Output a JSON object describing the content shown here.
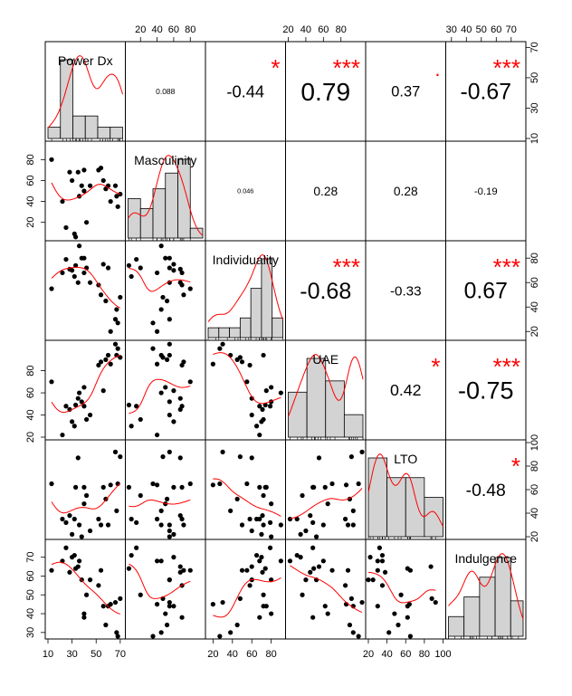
{
  "chart_data": {
    "type": "scatter-matrix",
    "title": "",
    "variables": [
      "Power Dx",
      "Masculinity",
      "Individuality",
      "UAE",
      "LTO",
      "Indulgence"
    ],
    "ticks": {
      "Power Dx": {
        "labels": [
          "10",
          "30",
          "50",
          "70"
        ],
        "values": [
          10,
          30,
          50,
          70
        ],
        "range": [
          10,
          72
        ]
      },
      "Masculinity": {
        "labels": [
          "20",
          "40",
          "60",
          "80"
        ],
        "values": [
          20,
          40,
          60,
          80
        ],
        "range": [
          5,
          95
        ]
      },
      "Individuality": {
        "labels": [
          "20",
          "40",
          "60",
          "80"
        ],
        "values": [
          20,
          40,
          60,
          80
        ],
        "range": [
          15,
          92
        ]
      },
      "UAE": {
        "labels": [
          "20",
          "40",
          "60",
          "80"
        ],
        "values": [
          20,
          40,
          60,
          80
        ],
        "range": [
          20,
          105
        ]
      },
      "LTO": {
        "labels": [
          "20",
          "40",
          "60",
          "80",
          "100"
        ],
        "values": [
          20,
          40,
          60,
          80,
          100
        ],
        "range": [
          20,
          100
        ]
      },
      "Indulgence": {
        "labels": [
          "30",
          "40",
          "50",
          "60",
          "70"
        ],
        "values": [
          30,
          40,
          50,
          60,
          70
        ],
        "range": [
          28,
          78
        ]
      }
    },
    "correlations": [
      {
        "pair": [
          "Power Dx",
          "Masculinity"
        ],
        "value": "0.088",
        "stars": ""
      },
      {
        "pair": [
          "Power Dx",
          "Individuality"
        ],
        "value": "-0.44",
        "stars": "*"
      },
      {
        "pair": [
          "Power Dx",
          "UAE"
        ],
        "value": "0.79",
        "stars": "***"
      },
      {
        "pair": [
          "Power Dx",
          "LTO"
        ],
        "value": "0.37",
        "stars": "."
      },
      {
        "pair": [
          "Power Dx",
          "Indulgence"
        ],
        "value": "-0.67",
        "stars": "***"
      },
      {
        "pair": [
          "Masculinity",
          "Individuality"
        ],
        "value": "0.046",
        "stars": ""
      },
      {
        "pair": [
          "Masculinity",
          "UAE"
        ],
        "value": "0.28",
        "stars": ""
      },
      {
        "pair": [
          "Masculinity",
          "LTO"
        ],
        "value": "0.28",
        "stars": ""
      },
      {
        "pair": [
          "Masculinity",
          "Indulgence"
        ],
        "value": "-0.19",
        "stars": ""
      },
      {
        "pair": [
          "Individuality",
          "UAE"
        ],
        "value": "-0.68",
        "stars": "***"
      },
      {
        "pair": [
          "Individuality",
          "LTO"
        ],
        "value": "-0.33",
        "stars": ""
      },
      {
        "pair": [
          "Individuality",
          "Indulgence"
        ],
        "value": "0.67",
        "stars": "***"
      },
      {
        "pair": [
          "UAE",
          "LTO"
        ],
        "value": "0.42",
        "stars": "*"
      },
      {
        "pair": [
          "UAE",
          "Indulgence"
        ],
        "value": "-0.75",
        "stars": "***"
      },
      {
        "pair": [
          "LTO",
          "Indulgence"
        ],
        "value": "-0.48",
        "stars": "*"
      }
    ],
    "histograms": {
      "Power Dx": {
        "bins": [
          10,
          20,
          30,
          40,
          50,
          60,
          70
        ],
        "counts": [
          1,
          7,
          2,
          2,
          1,
          1
        ]
      },
      "Masculinity": {
        "bins": [
          5,
          20,
          35,
          50,
          65,
          80,
          95
        ],
        "counts": [
          2,
          1.5,
          2.5,
          3.3,
          4,
          0.5
        ]
      },
      "Individuality": {
        "bins": [
          20,
          30,
          40,
          50,
          60,
          70,
          80,
          90
        ],
        "counts": [
          1,
          1,
          1,
          2,
          5,
          8,
          2
        ]
      },
      "UAE": {
        "bins": [
          20,
          40,
          60,
          80,
          100
        ],
        "counts": [
          4,
          7,
          5,
          2
        ]
      },
      "LTO": {
        "bins": [
          20,
          40,
          60,
          80,
          100
        ],
        "counts": [
          4,
          3,
          3,
          2
        ]
      },
      "Indulgence": {
        "bins": [
          30,
          40,
          50,
          60,
          70,
          78
        ],
        "counts": [
          1,
          2,
          3,
          4,
          1.8
        ]
      }
    },
    "observations": [
      {
        "Power Dx": 13,
        "Masculinity": 80,
        "Individuality": 55,
        "UAE": 70,
        "LTO": 65,
        "Indulgence": 63
      },
      {
        "Power Dx": 22,
        "Masculinity": 40,
        "Individuality": 68,
        "UAE": 22,
        "LTO": 35,
        "Indulgence": 68
      },
      {
        "Power Dx": 25,
        "Masculinity": 15,
        "Individuality": 79,
        "UAE": 48,
        "LTO": 32,
        "Indulgence": 75
      },
      {
        "Power Dx": 28,
        "Masculinity": 68,
        "Individuality": 71,
        "UAE": 45,
        "LTO": 38,
        "Indulgence": 62
      },
      {
        "Power Dx": 30,
        "Masculinity": 60,
        "Individuality": 70,
        "UAE": 34,
        "LTO": 22,
        "Indulgence": 70
      },
      {
        "Power Dx": 32,
        "Masculinity": 9,
        "Individuality": 65,
        "UAE": 30,
        "LTO": 35,
        "Indulgence": 71
      },
      {
        "Power Dx": 33,
        "Masculinity": 6,
        "Individuality": 74,
        "UAE": 49,
        "LTO": 62,
        "Indulgence": 64
      },
      {
        "Power Dx": 35,
        "Masculinity": 68,
        "Individuality": 60,
        "UAE": 55,
        "LTO": 87,
        "Indulgence": 65
      },
      {
        "Power Dx": 36,
        "Masculinity": 45,
        "Individuality": 90,
        "UAE": 60,
        "LTO": 30,
        "Indulgence": 68
      },
      {
        "Power Dx": 38,
        "Masculinity": 55,
        "Individuality": 80,
        "UAE": 52,
        "LTO": 20,
        "Indulgence": 58
      },
      {
        "Power Dx": 40,
        "Masculinity": 50,
        "Individuality": 80,
        "UAE": 65,
        "LTO": 48,
        "Indulgence": 40
      },
      {
        "Power Dx": 40,
        "Masculinity": 70,
        "Individuality": 68,
        "UAE": 48,
        "LTO": 62,
        "Indulgence": 38
      },
      {
        "Power Dx": 42,
        "Masculinity": 20,
        "Individuality": 72,
        "UAE": 36,
        "LTO": 55,
        "Indulgence": 50
      },
      {
        "Power Dx": 45,
        "Masculinity": 55,
        "Individuality": 60,
        "UAE": 40,
        "LTO": 25,
        "Indulgence": 58
      },
      {
        "Power Dx": 52,
        "Masculinity": 70,
        "Individuality": 58,
        "UAE": 85,
        "LTO": 35,
        "Indulgence": 55
      },
      {
        "Power Dx": 54,
        "Masculinity": 72,
        "Individuality": 50,
        "UAE": 88,
        "LTO": 30,
        "Indulgence": 63
      },
      {
        "Power Dx": 56,
        "Masculinity": 60,
        "Individuality": 75,
        "UAE": 62,
        "LTO": 62,
        "Indulgence": 44
      },
      {
        "Power Dx": 58,
        "Masculinity": 52,
        "Individuality": 45,
        "UAE": 90,
        "LTO": 52,
        "Indulgence": 34
      },
      {
        "Power Dx": 60,
        "Masculinity": 55,
        "Individuality": 72,
        "UAE": 94,
        "LTO": 30,
        "Indulgence": 44
      },
      {
        "Power Dx": 62,
        "Masculinity": 40,
        "Individuality": 20,
        "UAE": 86,
        "LTO": 64,
        "Indulgence": 45
      },
      {
        "Power Dx": 66,
        "Masculinity": 55,
        "Individuality": 30,
        "UAE": 104,
        "LTO": 92,
        "Indulgence": 46
      },
      {
        "Power Dx": 67,
        "Masculinity": 45,
        "Individuality": 38,
        "UAE": 94,
        "LTO": 42,
        "Indulgence": 30
      },
      {
        "Power Dx": 68,
        "Masculinity": 35,
        "Individuality": 27,
        "UAE": 100,
        "LTO": 65,
        "Indulgence": 28
      },
      {
        "Power Dx": 70,
        "Masculinity": 47,
        "Individuality": 48,
        "UAE": 92,
        "LTO": 88,
        "Indulgence": 48
      }
    ],
    "colors": {
      "points": "#000000",
      "smooth": "#ff0000",
      "density": "#ff0000",
      "stars": "#ff0000",
      "histogram_fill": "#d3d3d3"
    }
  }
}
